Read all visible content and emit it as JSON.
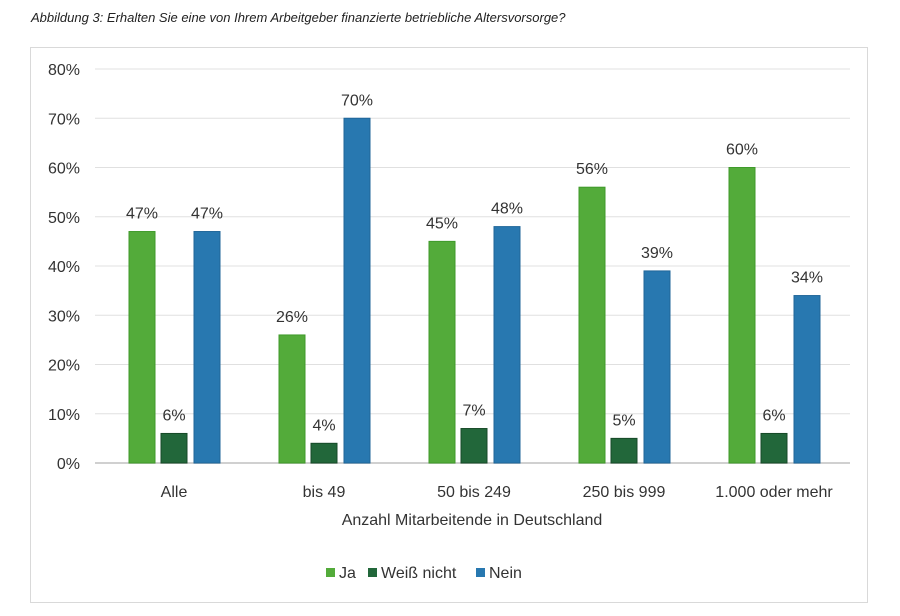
{
  "chart_data": {
    "type": "bar",
    "title": "Abbildung 3: Erhalten Sie eine von Ihrem Arbeitgeber finanzierte betriebliche Altersvorsorge?",
    "xlabel": "Anzahl Mitarbeitende in Deutschland",
    "ylabel": "",
    "ylim": [
      0,
      80
    ],
    "yticks": [
      "0%",
      "10%",
      "20%",
      "30%",
      "40%",
      "50%",
      "60%",
      "70%",
      "80%"
    ],
    "grid": true,
    "legend_position": "bottom",
    "categories": [
      "Alle",
      "bis 49",
      "50 bis 249",
      "250 bis 999",
      "1.000 oder mehr"
    ],
    "series": [
      {
        "name": "Ja",
        "color": "#53ab3a",
        "values": [
          47,
          26,
          45,
          56,
          60
        ],
        "labels": [
          "47%",
          "26%",
          "45%",
          "56%",
          "60%"
        ]
      },
      {
        "name": "Weiß nicht",
        "color": "#22673a",
        "values": [
          6,
          4,
          7,
          5,
          6
        ],
        "labels": [
          "6%",
          "4%",
          "7%",
          "5%",
          "6%"
        ]
      },
      {
        "name": "Nein",
        "color": "#2878b0",
        "values": [
          47,
          70,
          48,
          39,
          34
        ],
        "labels": [
          "47%",
          "70%",
          "48%",
          "39%",
          "34%"
        ]
      }
    ]
  }
}
